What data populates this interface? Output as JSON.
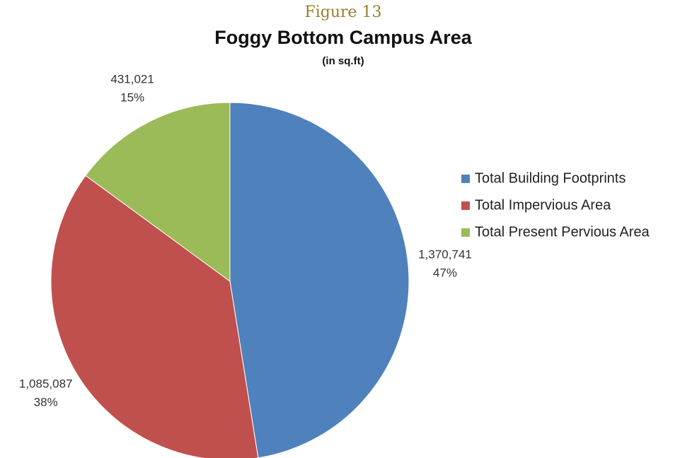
{
  "chart_data": {
    "type": "pie",
    "figure_label": "Figure 13",
    "title": "Foggy Bottom Campus Area",
    "subtitle": "(in sq.ft)",
    "categories": [
      "Total Building Footprints",
      "Total Impervious Area",
      "Total Present Pervious Area"
    ],
    "values": [
      1370741,
      1085087,
      431021
    ],
    "value_labels": [
      "1,370,741",
      "1,085,087",
      "431,021"
    ],
    "percentages": [
      47,
      38,
      15
    ],
    "percentage_labels": [
      "47%",
      "38%",
      "15%"
    ],
    "colors": [
      "#4f81bd",
      "#c0504d",
      "#9bbb59"
    ],
    "legend": "right"
  }
}
